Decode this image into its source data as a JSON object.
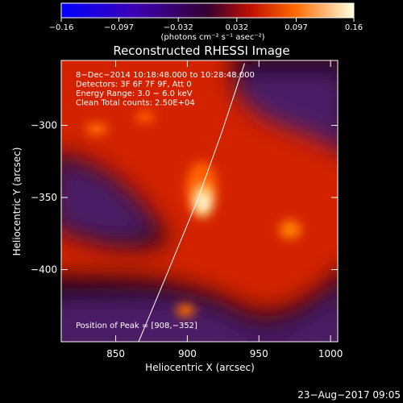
{
  "colorbar": {
    "tick_labels": [
      "−0.16",
      "−0.097",
      "−0.032",
      "0.032",
      "0.097",
      "0.16"
    ],
    "tick_values": [
      -0.16,
      -0.097,
      -0.032,
      0.032,
      0.097,
      0.16
    ],
    "units_label": "(photons cm⁻² s⁻¹ asec⁻²)",
    "range": [
      -0.16,
      0.16
    ]
  },
  "chart_data": {
    "type": "heatmap",
    "title": "Reconstructed RHESSI Image",
    "xlabel": "Heliocentric X (arcsec)",
    "ylabel": "Heliocentric Y (arcsec)",
    "xlim": [
      812,
      1005
    ],
    "ylim": [
      -450,
      -255
    ],
    "x_ticks": [
      850,
      900,
      950,
      1000
    ],
    "y_ticks": [
      -300,
      -350,
      -400
    ],
    "x_tick_labels": [
      "850",
      "900",
      "950",
      "1000"
    ],
    "y_tick_labels": [
      "−300",
      "−350",
      "−400"
    ],
    "annotations": [
      "8−Dec−2014 10:18:48.000 to 10:28:48.000",
      "Detectors: 3F 6F 7F 9F, Att 0",
      "Energy Range: 3.0 − 6.0 keV",
      "Clean     Total counts: 2.50E+04"
    ],
    "peak_label": "Position of Peak = [908,−352]",
    "peak": [
      908,
      -352
    ],
    "limb_points": [
      [
        866,
        -450
      ],
      [
        885,
        -405
      ],
      [
        907,
        -352
      ],
      [
        924,
        -305
      ],
      [
        940,
        -257
      ]
    ]
  },
  "footer": {
    "timestamp": "23−Aug−2017 09:05"
  }
}
